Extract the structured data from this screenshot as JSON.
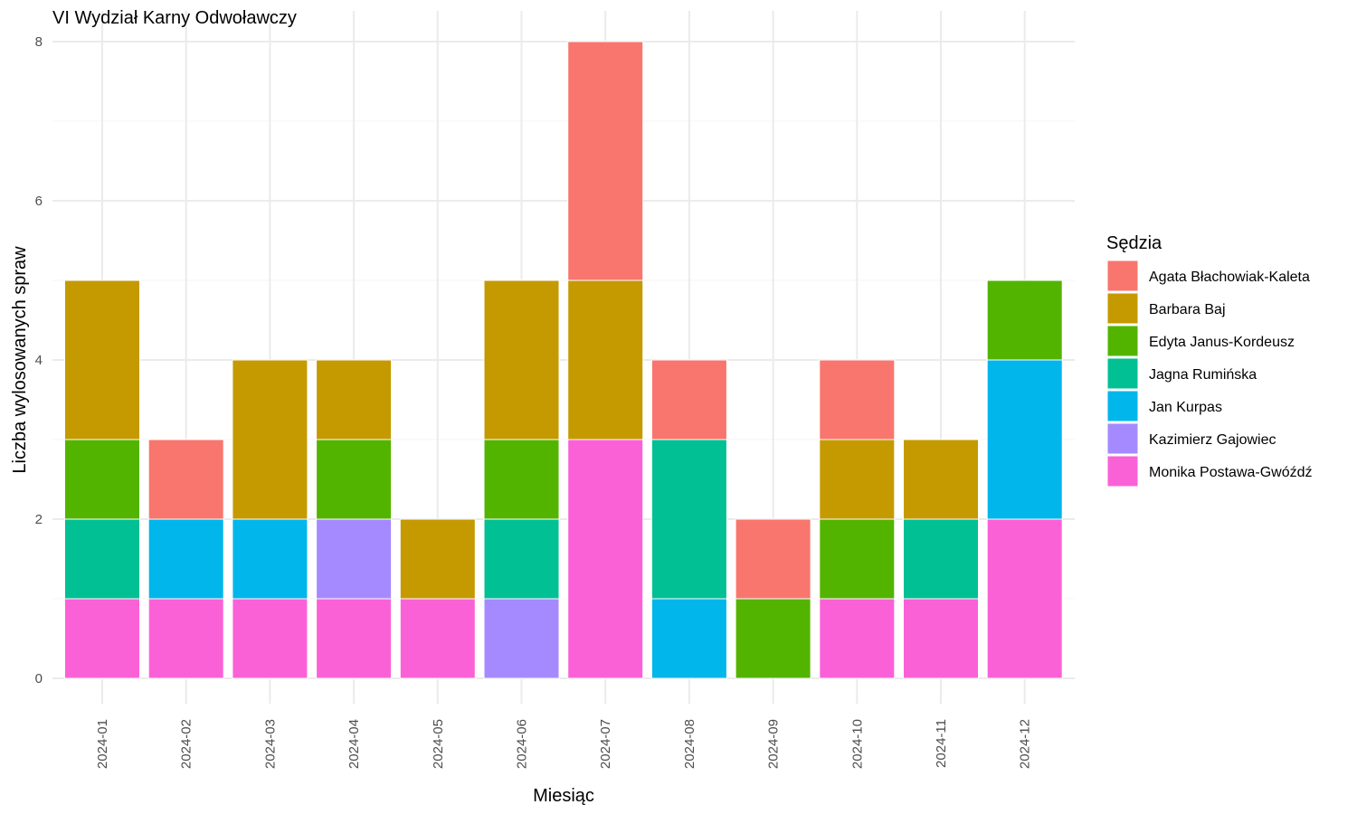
{
  "chart_data": {
    "type": "bar",
    "stacked": true,
    "title": "VI Wydział Karny Odwoławczy",
    "xlabel": "Miesiąc",
    "ylabel": "Liczba wylosowanych spraw",
    "ylim": [
      0,
      8
    ],
    "yticks": [
      "0",
      "2",
      "4",
      "6",
      "8"
    ],
    "grid": true,
    "legend_position": "right",
    "legend_title": "Sędzia",
    "categories": [
      "2024-01",
      "2024-02",
      "2024-03",
      "2024-04",
      "2024-05",
      "2024-06",
      "2024-07",
      "2024-08",
      "2024-09",
      "2024-10",
      "2024-11",
      "2024-12"
    ],
    "stack_order_top_to_bottom": true,
    "series": [
      {
        "name": "Agata Błachowiak-Kaleta",
        "color": "#F8766D",
        "values": [
          0,
          1,
          0,
          0,
          0,
          0,
          3,
          1,
          1,
          1,
          0,
          0
        ]
      },
      {
        "name": "Barbara Baj",
        "color": "#C49A00",
        "values": [
          2,
          0,
          2,
          1,
          1,
          2,
          2,
          0,
          0,
          1,
          1,
          0
        ]
      },
      {
        "name": "Edyta Janus-Kordeusz",
        "color": "#53B400",
        "values": [
          1,
          0,
          0,
          1,
          0,
          1,
          0,
          0,
          1,
          1,
          0,
          1
        ]
      },
      {
        "name": "Jagna Rumińska",
        "color": "#00C094",
        "values": [
          1,
          0,
          0,
          0,
          0,
          1,
          0,
          2,
          0,
          0,
          1,
          0
        ]
      },
      {
        "name": "Jan Kurpas",
        "color": "#00B6EB",
        "values": [
          0,
          1,
          1,
          0,
          0,
          0,
          0,
          1,
          0,
          0,
          0,
          2
        ]
      },
      {
        "name": "Kazimierz Gajowiec",
        "color": "#A58AFF",
        "values": [
          0,
          0,
          0,
          1,
          0,
          1,
          0,
          0,
          0,
          0,
          0,
          0
        ]
      },
      {
        "name": "Monika Postawa-Gwóźdź",
        "color": "#FB61D7",
        "values": [
          1,
          1,
          1,
          1,
          1,
          0,
          3,
          0,
          0,
          1,
          1,
          2
        ]
      }
    ]
  }
}
